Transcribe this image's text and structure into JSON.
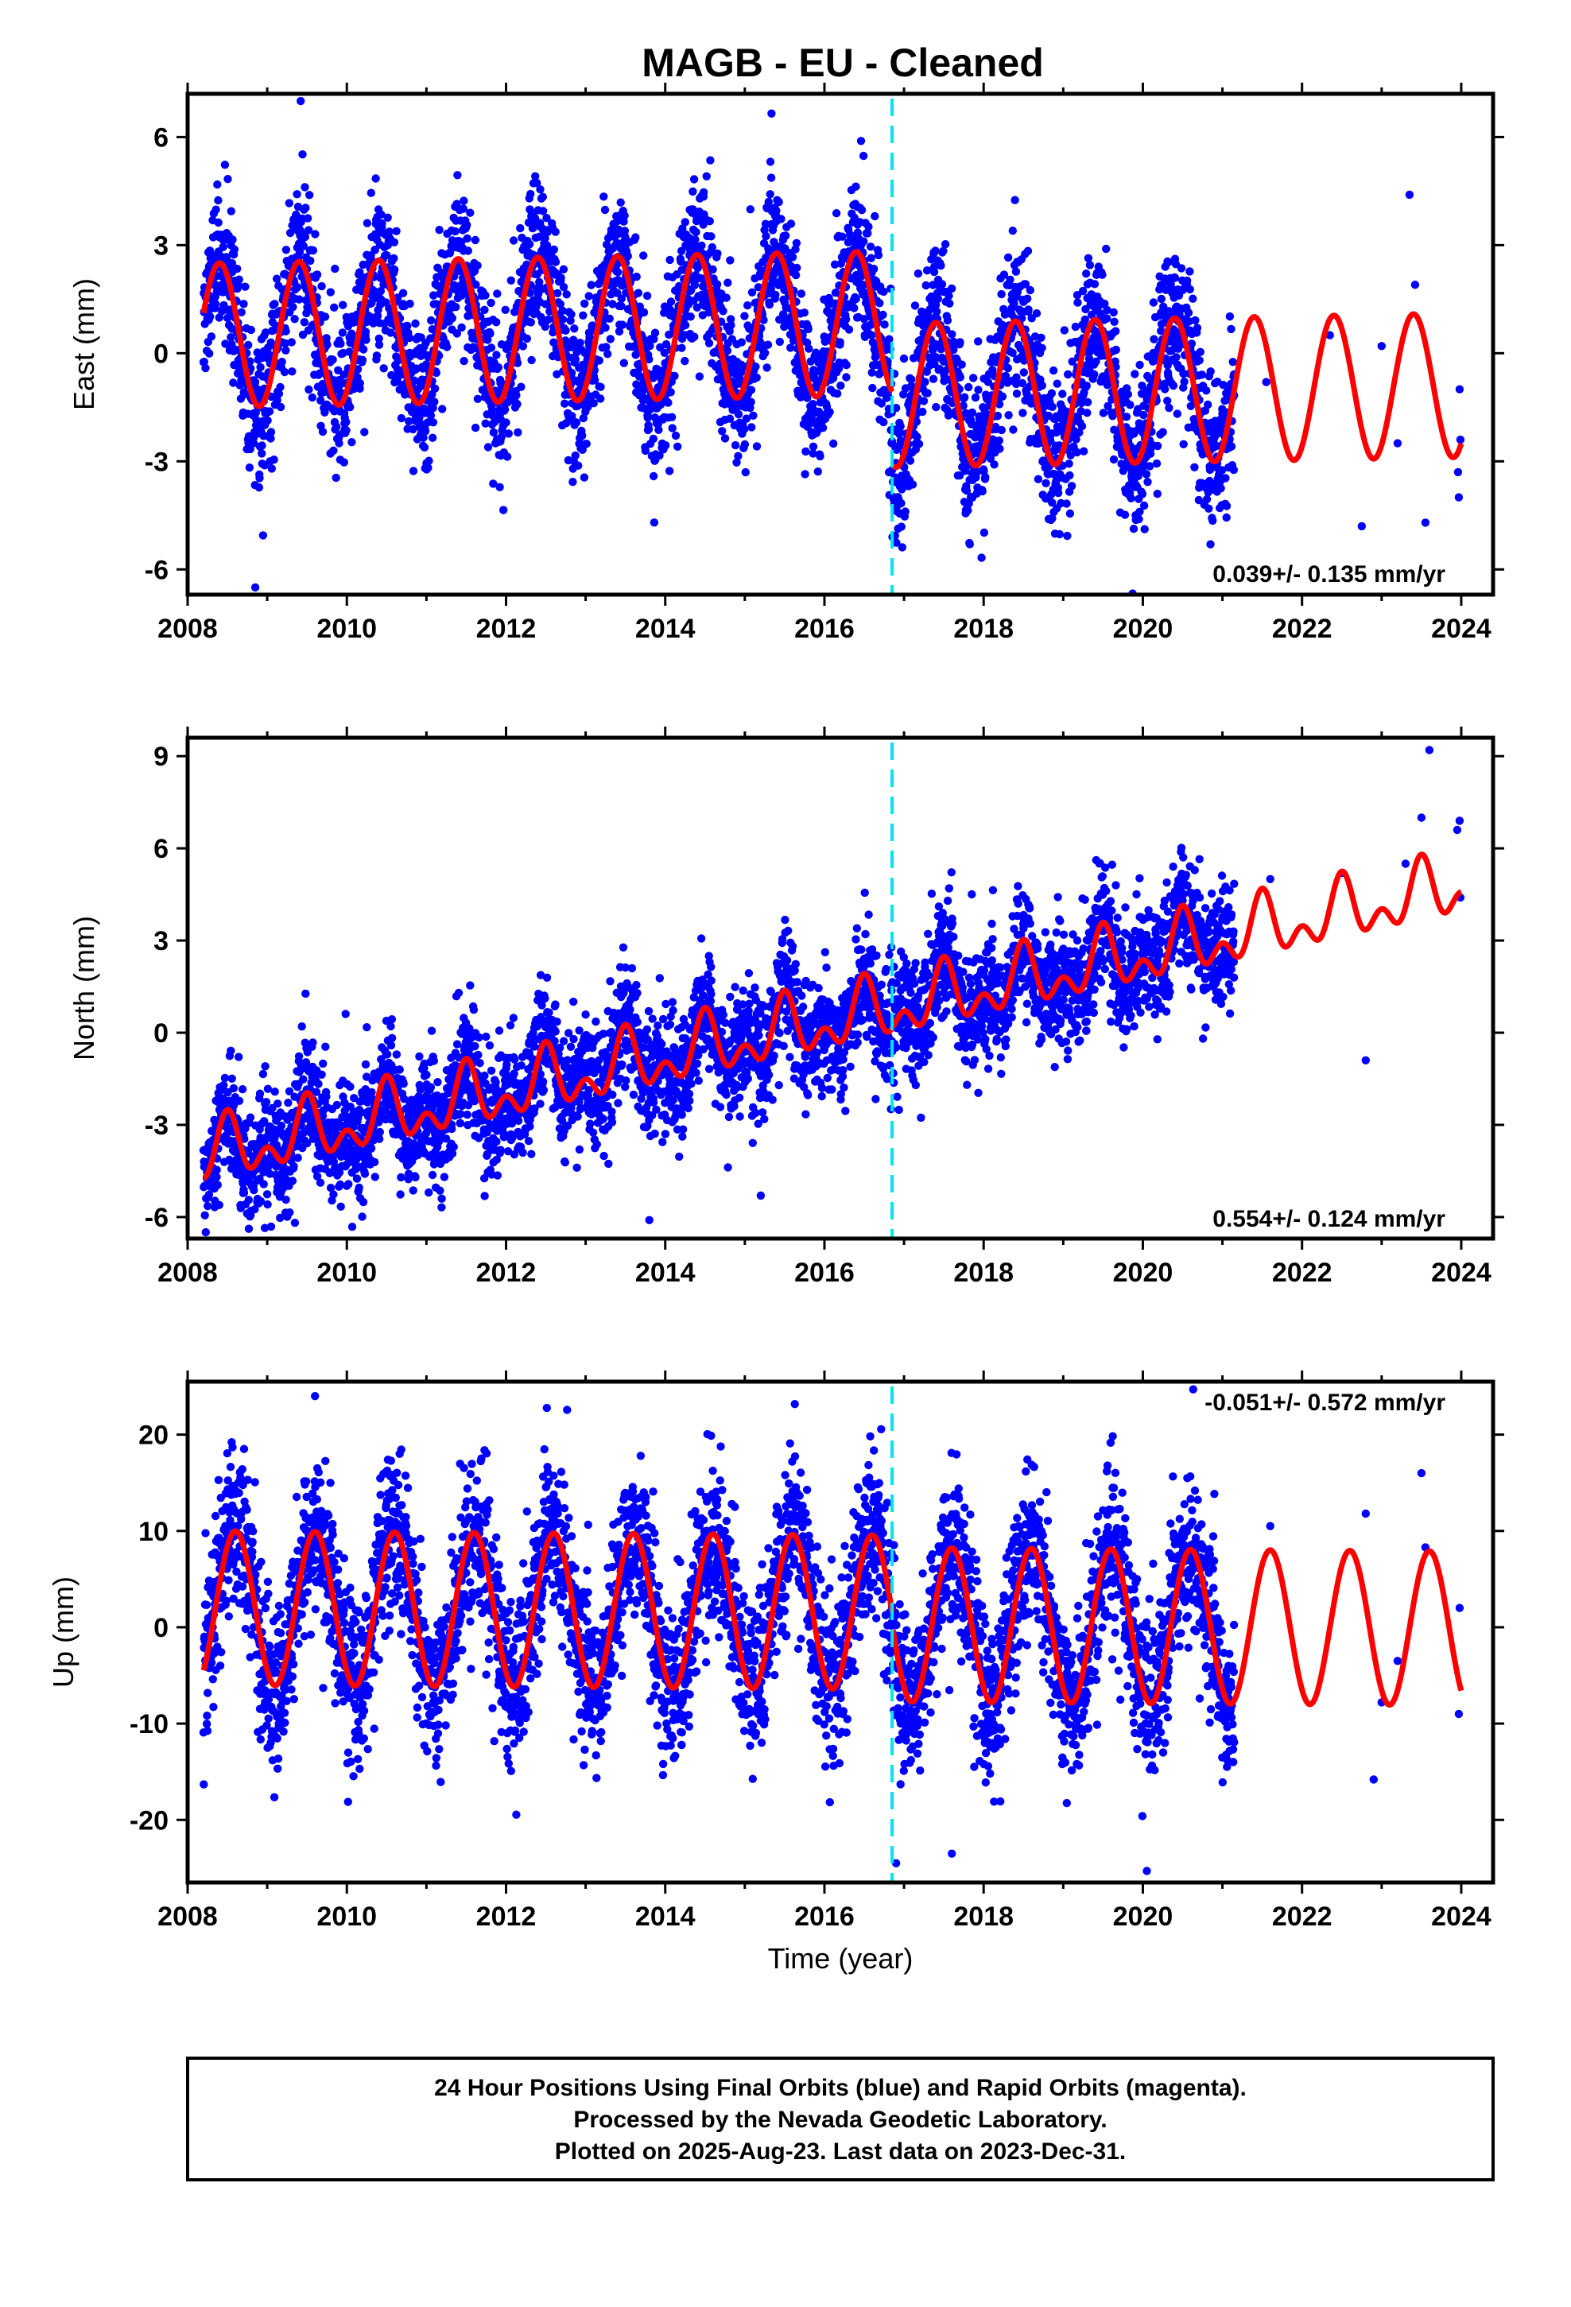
{
  "title": "MAGB  - EU - Cleaned",
  "colors": {
    "points": "#0000ff",
    "model": "#ff0000",
    "equipment_change": "#00e5ee"
  },
  "chart_data": [
    {
      "type": "scatter",
      "component": "east",
      "ylabel": "East (mm)",
      "xlabel": "",
      "xlim": [
        2008.0,
        2024.4
      ],
      "ylim": [
        -6.7,
        7.2
      ],
      "yticks": [
        -6,
        -3,
        0,
        3,
        6
      ],
      "xticks": [
        2008,
        2010,
        2012,
        2014,
        2016,
        2018,
        2020,
        2022,
        2024
      ],
      "rate_label": "0.039+/- 0.135 mm/yr",
      "equipment_change_x": 2016.85,
      "data_span": [
        2008.2,
        2021.15
      ],
      "model": {
        "velocity": 0.039,
        "annual_amp": 2.0,
        "annual_peak": 2008.4,
        "offset_before": 0.8,
        "offset_after": -1.2
      },
      "scatter_sd": 1.05,
      "outliers": [
        [
          2009.42,
          7.0
        ],
        [
          2008.85,
          -6.5
        ],
        [
          2021.55,
          -0.8
        ],
        [
          2022.75,
          -4.8
        ],
        [
          2022.35,
          0.5
        ],
        [
          2023.0,
          0.2
        ],
        [
          2023.2,
          -2.5
        ],
        [
          2023.35,
          4.4
        ],
        [
          2023.42,
          1.9
        ],
        [
          2023.55,
          -4.7
        ],
        [
          2023.98,
          -1.0
        ],
        [
          2023.99,
          -2.4
        ],
        [
          2023.97,
          -4.0
        ],
        [
          2023.96,
          -3.3
        ]
      ]
    },
    {
      "type": "scatter",
      "component": "north",
      "ylabel": "North (mm)",
      "xlabel": "",
      "xlim": [
        2008.0,
        2024.4
      ],
      "ylim": [
        -6.7,
        9.6
      ],
      "yticks": [
        -6,
        -3,
        0,
        3,
        6,
        9
      ],
      "xticks": [
        2008,
        2010,
        2012,
        2014,
        2016,
        2018,
        2020,
        2022,
        2024
      ],
      "rate_label": "0.554+/- 0.124 mm/yr",
      "equipment_change_x": 2016.85,
      "data_span": [
        2008.2,
        2021.15
      ],
      "model": {
        "velocity": 0.554,
        "annual_amp": 0.75,
        "annual_peak": 2008.5,
        "semi_amp": 0.6,
        "intercept_2016": 0.3
      },
      "scatter_sd": 0.95,
      "outliers": [
        [
          2023.6,
          9.2
        ],
        [
          2022.8,
          -0.9
        ],
        [
          2023.95,
          6.6
        ],
        [
          2023.98,
          6.9
        ],
        [
          2023.99,
          4.4
        ],
        [
          2023.3,
          5.5
        ],
        [
          2022.5,
          5.2
        ],
        [
          2021.6,
          5.0
        ],
        [
          2023.5,
          7.0
        ],
        [
          2015.2,
          -5.3
        ],
        [
          2013.8,
          -6.1
        ]
      ]
    },
    {
      "type": "scatter",
      "component": "up",
      "ylabel": "Up (mm)",
      "xlabel": "Time (year)",
      "xlim": [
        2008.0,
        2024.4
      ],
      "ylim": [
        -26.5,
        25.5
      ],
      "yticks": [
        -20,
        -10,
        0,
        10,
        20
      ],
      "xticks": [
        2008,
        2010,
        2012,
        2014,
        2016,
        2018,
        2020,
        2022,
        2024
      ],
      "rate_label": "-0.051+/- 0.572 mm/yr",
      "equipment_change_x": 2016.85,
      "data_span": [
        2008.2,
        2021.15
      ],
      "model": {
        "velocity": -0.051,
        "annual_amp": 8.0,
        "annual_peak": 2008.6,
        "offset_before": 1.6,
        "offset_after": 0.3
      },
      "scatter_sd": 4.2,
      "outliers": [
        [
          2009.6,
          24.0
        ],
        [
          2016.9,
          -24.5
        ],
        [
          2020.05,
          -25.3
        ],
        [
          2017.6,
          -23.5
        ],
        [
          2022.9,
          -15.8
        ],
        [
          2022.8,
          11.8
        ],
        [
          2023.0,
          -7.8
        ],
        [
          2023.2,
          -3.5
        ],
        [
          2023.5,
          16.0
        ],
        [
          2023.55,
          8.3
        ],
        [
          2023.98,
          2.0
        ],
        [
          2023.97,
          -9.0
        ],
        [
          2021.6,
          10.5
        ]
      ]
    }
  ],
  "footer": {
    "line1": "24 Hour Positions Using Final Orbits (blue) and Rapid Orbits (magenta).",
    "line2": "Processed by the Nevada Geodetic Laboratory.",
    "line3": "Plotted on 2025-Aug-23. Last data on 2023-Dec-31."
  }
}
